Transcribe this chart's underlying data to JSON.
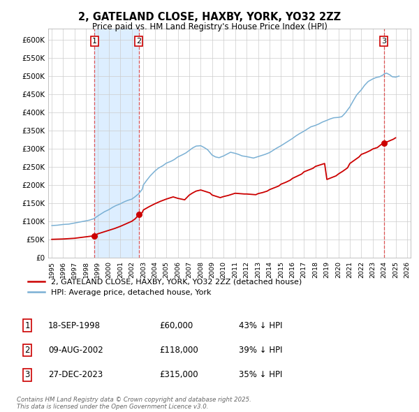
{
  "title": "2, GATELAND CLOSE, HAXBY, YORK, YO32 2ZZ",
  "subtitle": "Price paid vs. HM Land Registry's House Price Index (HPI)",
  "ylim": [
    0,
    630000
  ],
  "yticks": [
    0,
    50000,
    100000,
    150000,
    200000,
    250000,
    300000,
    350000,
    400000,
    450000,
    500000,
    550000,
    600000
  ],
  "ytick_labels": [
    "£0",
    "£50K",
    "£100K",
    "£150K",
    "£200K",
    "£250K",
    "£300K",
    "£350K",
    "£400K",
    "£450K",
    "£500K",
    "£550K",
    "£600K"
  ],
  "xlim_start": 1994.7,
  "xlim_end": 2026.3,
  "sale_dates": [
    1998.72,
    2002.6,
    2023.98
  ],
  "sale_prices": [
    60000,
    118000,
    315000
  ],
  "sale_labels": [
    "1",
    "2",
    "3"
  ],
  "legend_line1": "2, GATELAND CLOSE, HAXBY, YORK, YO32 2ZZ (detached house)",
  "legend_line2": "HPI: Average price, detached house, York",
  "table_entries": [
    {
      "label": "1",
      "date": "18-SEP-1998",
      "price": "£60,000",
      "hpi": "43% ↓ HPI"
    },
    {
      "label": "2",
      "date": "09-AUG-2002",
      "price": "£118,000",
      "hpi": "39% ↓ HPI"
    },
    {
      "label": "3",
      "date": "27-DEC-2023",
      "price": "£315,000",
      "hpi": "35% ↓ HPI"
    }
  ],
  "footer": "Contains HM Land Registry data © Crown copyright and database right 2025.\nThis data is licensed under the Open Government Licence v3.0.",
  "red_color": "#cc0000",
  "blue_color": "#7ab0d4",
  "shade_color": "#ddeeff",
  "vline_color": "#dd4444",
  "background_color": "#ffffff",
  "grid_color": "#cccccc",
  "hpi_years": [
    1995,
    1995.5,
    1996,
    1996.5,
    1997,
    1997.5,
    1998,
    1998.3,
    1998.5,
    1998.7,
    1999,
    1999.3,
    1999.6,
    2000,
    2000.3,
    2000.6,
    2001,
    2001.3,
    2001.6,
    2002,
    2002.3,
    2002.6,
    2002.9,
    2003,
    2003.3,
    2003.6,
    2004,
    2004.3,
    2004.7,
    2005,
    2005.4,
    2005.7,
    2006,
    2006.4,
    2006.7,
    2007,
    2007.3,
    2007.6,
    2008,
    2008.3,
    2008.6,
    2009,
    2009.3,
    2009.6,
    2010,
    2010.3,
    2010.6,
    2011,
    2011.3,
    2011.6,
    2012,
    2012.3,
    2012.6,
    2013,
    2013.3,
    2013.6,
    2014,
    2014.3,
    2014.6,
    2015,
    2015.3,
    2015.6,
    2016,
    2016.3,
    2016.6,
    2017,
    2017.3,
    2017.6,
    2018,
    2018.3,
    2018.6,
    2019,
    2019.3,
    2019.6,
    2020,
    2020.3,
    2020.6,
    2021,
    2021.3,
    2021.6,
    2022,
    2022.3,
    2022.6,
    2023,
    2023.3,
    2023.6,
    2023.9,
    2024,
    2024.2,
    2024.5,
    2024.7,
    2025,
    2025.3
  ],
  "hpi_values": [
    88000,
    89000,
    91000,
    92000,
    95000,
    98000,
    101000,
    103000,
    105000,
    107000,
    114000,
    120000,
    126000,
    132000,
    138000,
    143000,
    148000,
    153000,
    157000,
    161000,
    168000,
    176000,
    188000,
    200000,
    213000,
    225000,
    238000,
    246000,
    253000,
    260000,
    265000,
    270000,
    277000,
    283000,
    288000,
    295000,
    302000,
    307000,
    308000,
    303000,
    297000,
    282000,
    277000,
    275000,
    280000,
    285000,
    290000,
    287000,
    284000,
    280000,
    278000,
    276000,
    274000,
    278000,
    281000,
    284000,
    289000,
    295000,
    301000,
    308000,
    314000,
    320000,
    328000,
    335000,
    341000,
    348000,
    354000,
    360000,
    364000,
    368000,
    373000,
    378000,
    382000,
    385000,
    386000,
    388000,
    398000,
    415000,
    432000,
    448000,
    462000,
    475000,
    485000,
    492000,
    496000,
    498000,
    503000,
    506000,
    508000,
    503000,
    498000,
    497000,
    500000
  ],
  "red_years": [
    1995,
    1995.5,
    1996,
    1996.5,
    1997,
    1997.5,
    1998,
    1998.5,
    1998.72,
    1999,
    1999.5,
    2000,
    2000.5,
    2001,
    2001.5,
    2002,
    2002.3,
    2002.6,
    2002.9,
    2003,
    2003.5,
    2004,
    2004.5,
    2005,
    2005.3,
    2005.6,
    2006,
    2006.3,
    2006.6,
    2007,
    2007.3,
    2007.6,
    2008,
    2008.4,
    2008.8,
    2009,
    2009.4,
    2009.7,
    2010,
    2010.4,
    2010.8,
    2011,
    2011.4,
    2011.8,
    2012,
    2012.4,
    2012.8,
    2013,
    2013.4,
    2013.8,
    2014,
    2014.4,
    2014.8,
    2015,
    2015.4,
    2015.8,
    2016,
    2016.4,
    2016.8,
    2017,
    2017.4,
    2017.8,
    2018,
    2018.4,
    2018.8,
    2019,
    2019.4,
    2019.8,
    2020,
    2020.4,
    2020.8,
    2021,
    2021.4,
    2021.8,
    2022,
    2022.4,
    2022.8,
    2023,
    2023.4,
    2023.8,
    2023.98,
    2024.2,
    2024.5,
    2024.8,
    2025
  ],
  "red_values": [
    50000,
    50500,
    51000,
    52000,
    53000,
    55000,
    57000,
    59000,
    60000,
    65000,
    70000,
    75000,
    80000,
    86000,
    93000,
    100000,
    107000,
    118000,
    124000,
    131000,
    140000,
    148000,
    155000,
    161000,
    164000,
    167000,
    163000,
    161000,
    159000,
    172000,
    178000,
    183000,
    186000,
    182000,
    178000,
    172000,
    168000,
    165000,
    168000,
    171000,
    175000,
    177000,
    176000,
    175000,
    175000,
    174000,
    173000,
    176000,
    179000,
    183000,
    187000,
    192000,
    197000,
    202000,
    207000,
    213000,
    218000,
    224000,
    230000,
    236000,
    241000,
    246000,
    251000,
    255000,
    259000,
    215000,
    220000,
    225000,
    230000,
    238000,
    247000,
    259000,
    268000,
    277000,
    284000,
    289000,
    295000,
    299000,
    303000,
    313000,
    315000,
    318000,
    322000,
    326000,
    330000
  ]
}
